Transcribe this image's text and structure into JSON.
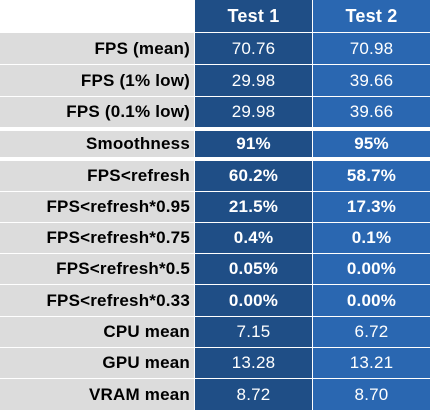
{
  "header": {
    "corner": "",
    "col1": "Test 1",
    "col2": "Test 2"
  },
  "colors": {
    "label_bg": "#dcdcdc",
    "test1_bg": "#1f4e86",
    "test2_bg": "#2a67b1"
  },
  "rows": [
    {
      "label": "FPS (mean)",
      "test1": "70.76",
      "test2": "70.98",
      "bold": false
    },
    {
      "label": "FPS (1% low)",
      "test1": "29.98",
      "test2": "39.66",
      "bold": false
    },
    {
      "label": "FPS (0.1% low)",
      "test1": "29.98",
      "test2": "39.66",
      "bold": false
    },
    {
      "label": "Smoothness",
      "test1": "91%",
      "test2": "95%",
      "bold": true
    },
    {
      "label": "FPS<refresh",
      "test1": "60.2%",
      "test2": "58.7%",
      "bold": true
    },
    {
      "label": "FPS<refresh*0.95",
      "test1": "21.5%",
      "test2": "17.3%",
      "bold": true
    },
    {
      "label": "FPS<refresh*0.75",
      "test1": "0.4%",
      "test2": "0.1%",
      "bold": true
    },
    {
      "label": "FPS<refresh*0.5",
      "test1": "0.05%",
      "test2": "0.00%",
      "bold": true
    },
    {
      "label": "FPS<refresh*0.33",
      "test1": "0.00%",
      "test2": "0.00%",
      "bold": true
    },
    {
      "label": "CPU mean",
      "test1": "7.15",
      "test2": "6.72",
      "bold": false
    },
    {
      "label": "GPU mean",
      "test1": "13.28",
      "test2": "13.21",
      "bold": false
    },
    {
      "label": "VRAM mean",
      "test1": "8.72",
      "test2": "8.70",
      "bold": false
    }
  ]
}
